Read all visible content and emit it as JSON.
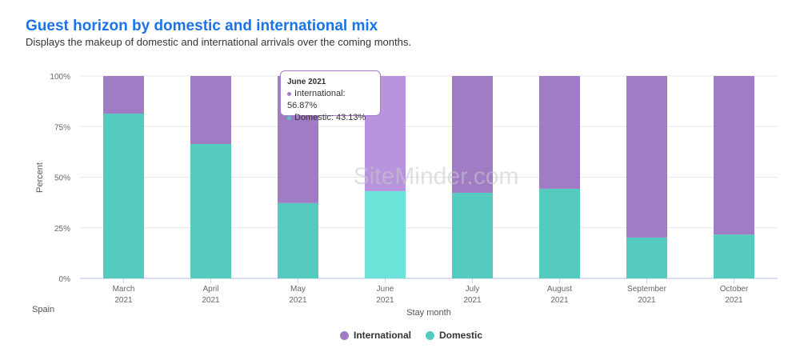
{
  "header": {
    "title": "Guest horizon by domestic and international mix",
    "subtitle": "Displays the makeup of domestic and international arrivals over the coming months."
  },
  "region": "Spain",
  "watermark": "SiteMinder.com",
  "tooltip": {
    "title": "June 2021",
    "international": "International: 56.87%",
    "domestic": "Domestic: 43.13%"
  },
  "colors": {
    "international": "#a07cc5",
    "domestic": "#55cbbf",
    "international_hover": "#b794dd",
    "domestic_hover": "#6ce3d8"
  },
  "chart_data": {
    "type": "bar",
    "stacked": true,
    "title": "Guest horizon by domestic and international mix",
    "xlabel": "Stay month",
    "ylabel": "Percent",
    "ylim": [
      0,
      100
    ],
    "yticks": [
      "0%",
      "25%",
      "50%",
      "75%",
      "100%"
    ],
    "categories": [
      [
        "March",
        "2021"
      ],
      [
        "April",
        "2021"
      ],
      [
        "May",
        "2021"
      ],
      [
        "June",
        "2021"
      ],
      [
        "July",
        "2021"
      ],
      [
        "August",
        "2021"
      ],
      [
        "September",
        "2021"
      ],
      [
        "October",
        "2021"
      ]
    ],
    "series": [
      {
        "name": "Domestic",
        "values": [
          81.4,
          66.4,
          37.2,
          43.13,
          42.3,
          44.3,
          20.2,
          21.7
        ]
      },
      {
        "name": "International",
        "values": [
          18.6,
          33.6,
          62.8,
          56.87,
          57.7,
          55.7,
          79.8,
          78.3
        ]
      }
    ],
    "legend": "bottom-center",
    "highlighted": 3
  }
}
